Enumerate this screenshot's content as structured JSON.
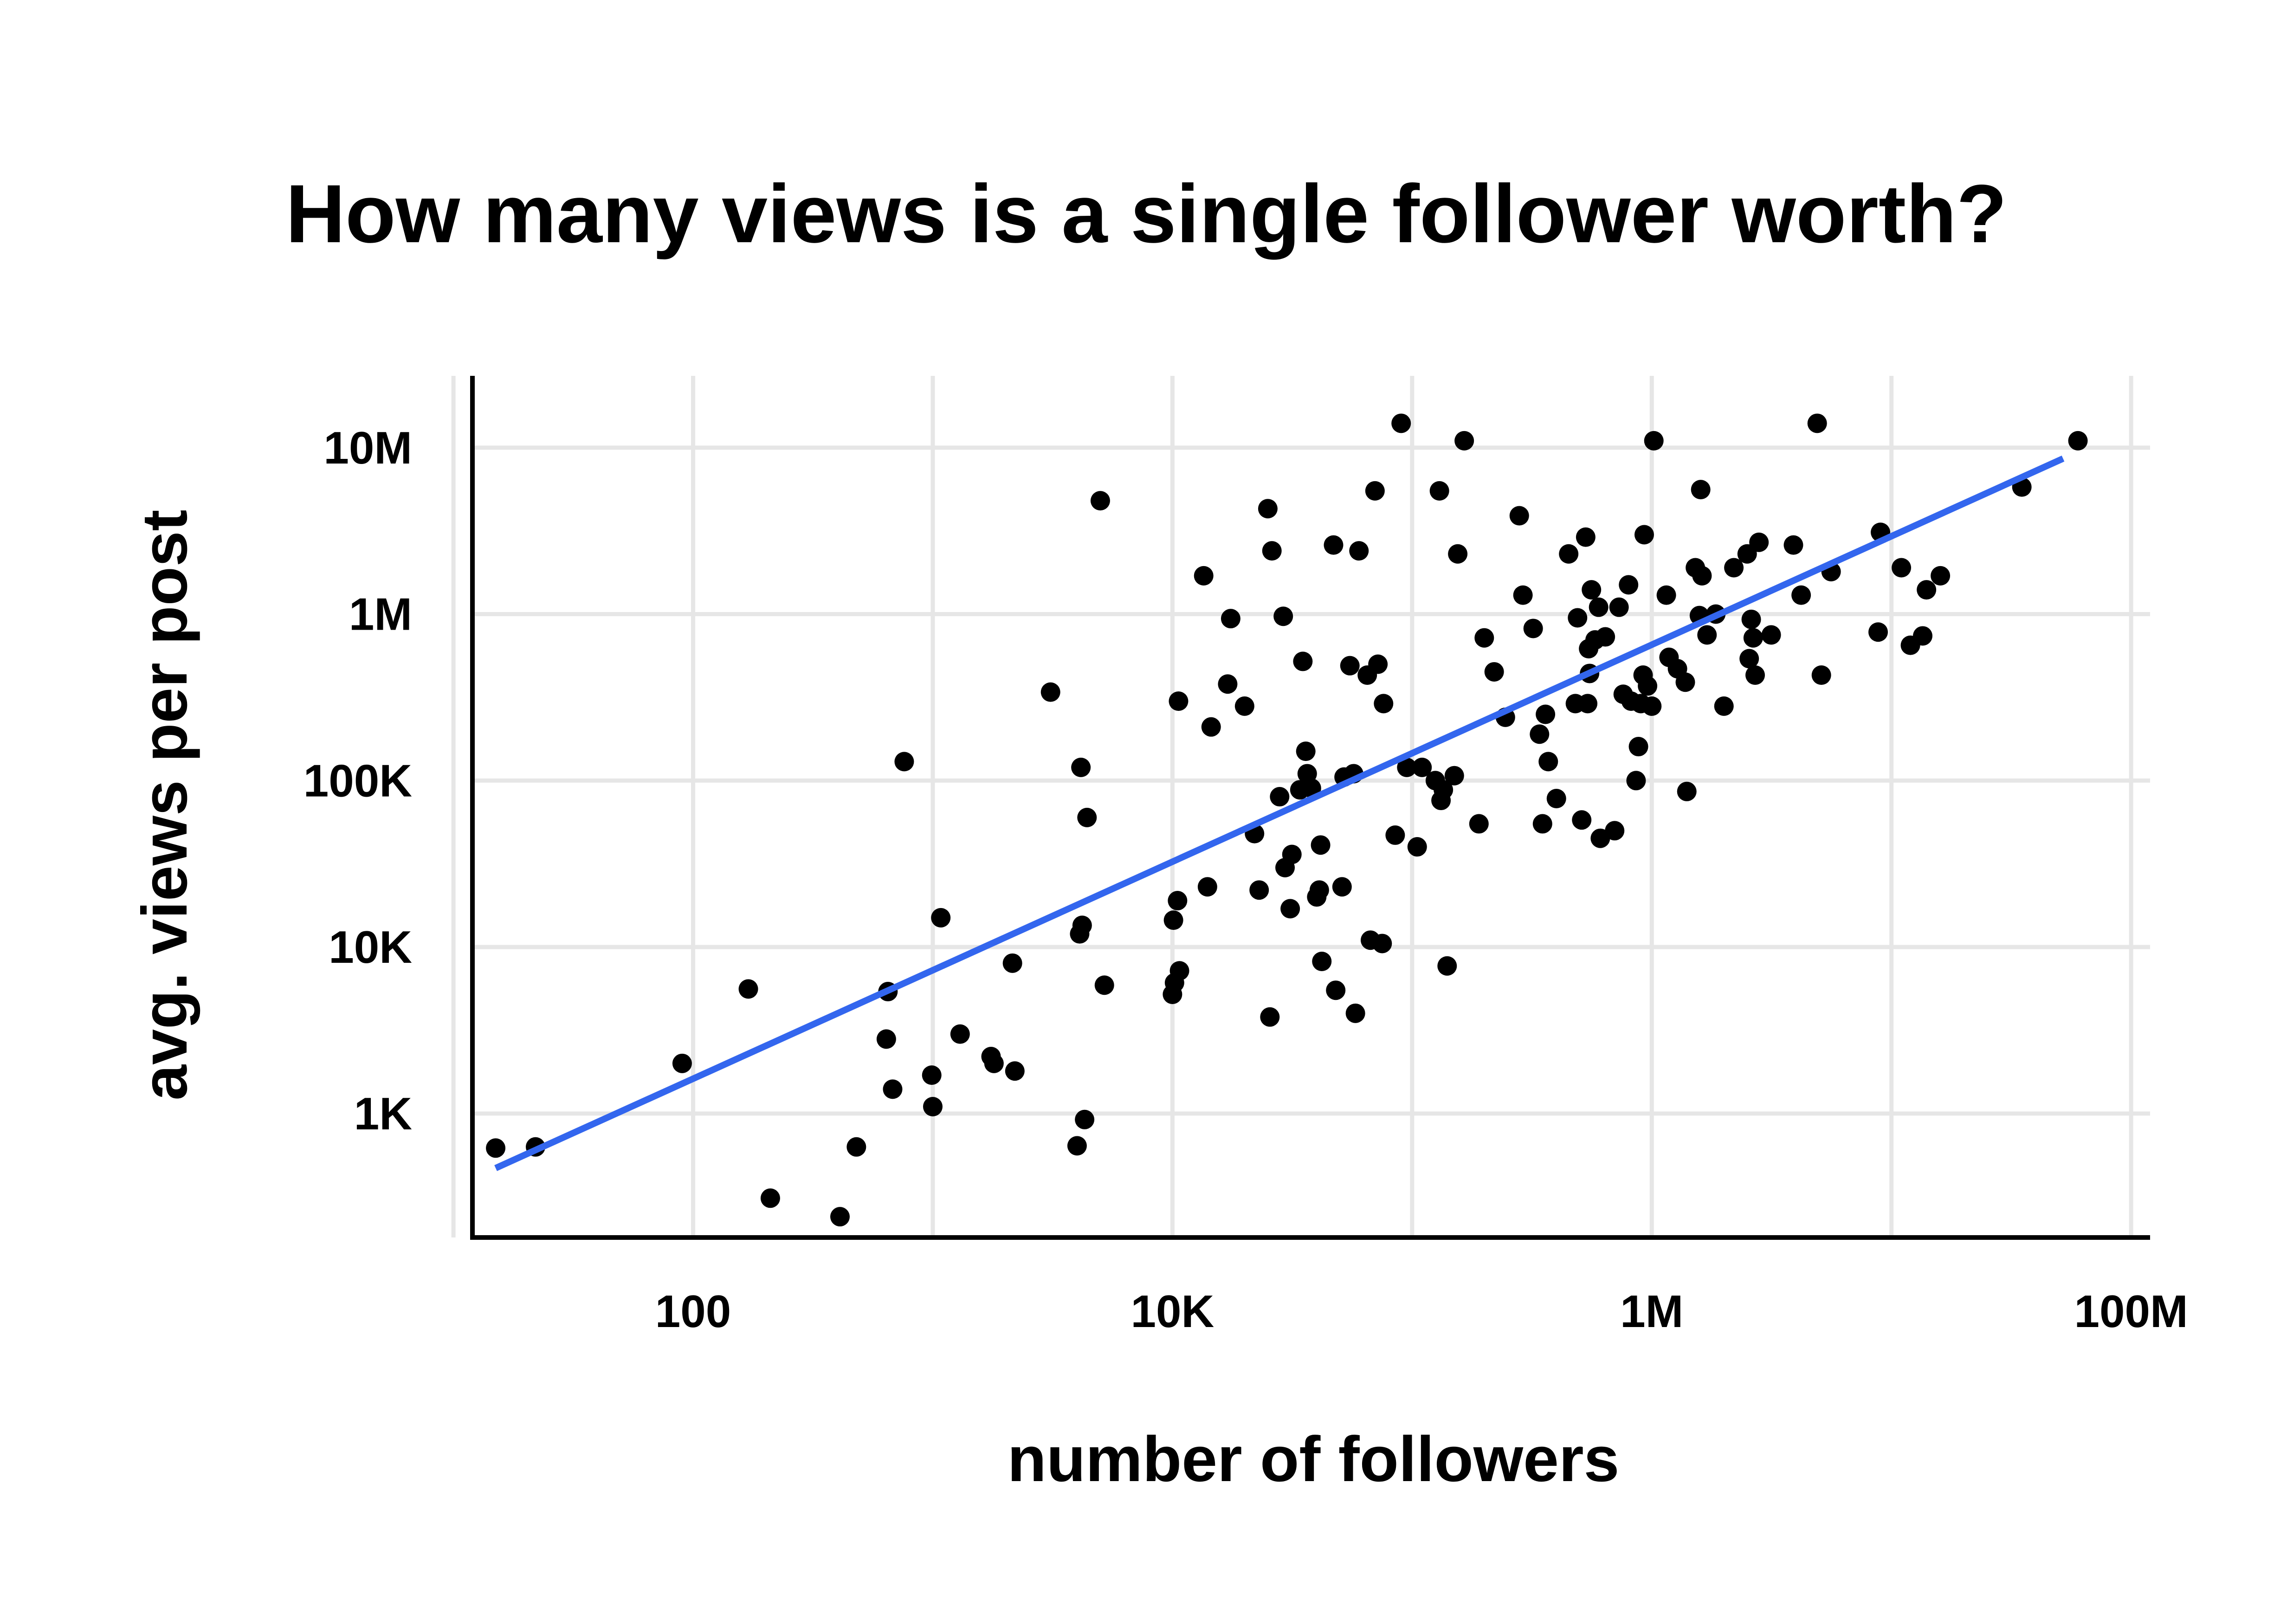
{
  "chart_data": {
    "type": "scatter",
    "title": "How many views is a single follower worth?",
    "xlabel": "number of followers",
    "ylabel": "avg. views per post",
    "x_scale": "log10",
    "y_scale": "log10",
    "xlim": [
      12,
      120000000
    ],
    "ylim": [
      180,
      27000000
    ],
    "grid": true,
    "legend": "none",
    "x_ticks": [
      {
        "value": 10,
        "label": ""
      },
      {
        "value": 100,
        "label": "100"
      },
      {
        "value": 1000,
        "label": ""
      },
      {
        "value": 10000,
        "label": "10K"
      },
      {
        "value": 100000,
        "label": ""
      },
      {
        "value": 1000000,
        "label": "1M"
      },
      {
        "value": 10000000,
        "label": ""
      },
      {
        "value": 100000000,
        "label": "100M"
      }
    ],
    "y_ticks": [
      {
        "value": 1000,
        "label": "1K"
      },
      {
        "value": 10000,
        "label": "10K"
      },
      {
        "value": 100000,
        "label": "100K"
      },
      {
        "value": 1000000,
        "label": "1M"
      },
      {
        "value": 10000000,
        "label": "10M"
      }
    ],
    "colors": {
      "points": "#000000",
      "trend": "#3366ee",
      "grid": "#e6e6e6",
      "axis": "#000000"
    },
    "trend_line": [
      {
        "x": 15,
        "y": 470
      },
      {
        "x": 52000000,
        "y": 8600000
      }
    ],
    "points": [
      {
        "x": 15,
        "y": 620
      },
      {
        "x": 22,
        "y": 630
      },
      {
        "x": 90,
        "y": 2000
      },
      {
        "x": 170,
        "y": 5600
      },
      {
        "x": 210,
        "y": 310
      },
      {
        "x": 410,
        "y": 240
      },
      {
        "x": 480,
        "y": 630
      },
      {
        "x": 640,
        "y": 2800
      },
      {
        "x": 650,
        "y": 5400
      },
      {
        "x": 680,
        "y": 1400
      },
      {
        "x": 760,
        "y": 130000
      },
      {
        "x": 990,
        "y": 1700
      },
      {
        "x": 1000,
        "y": 1100
      },
      {
        "x": 1080,
        "y": 15000
      },
      {
        "x": 1300,
        "y": 3000
      },
      {
        "x": 1750,
        "y": 2200
      },
      {
        "x": 1800,
        "y": 2000
      },
      {
        "x": 2150,
        "y": 8000
      },
      {
        "x": 2200,
        "y": 1800
      },
      {
        "x": 3100,
        "y": 340000
      },
      {
        "x": 4000,
        "y": 640
      },
      {
        "x": 4100,
        "y": 12000
      },
      {
        "x": 4150,
        "y": 120000
      },
      {
        "x": 4200,
        "y": 13500
      },
      {
        "x": 4300,
        "y": 920
      },
      {
        "x": 4400,
        "y": 60000
      },
      {
        "x": 5000,
        "y": 4800000
      },
      {
        "x": 5200,
        "y": 5900
      },
      {
        "x": 10000,
        "y": 5200
      },
      {
        "x": 10100,
        "y": 14500
      },
      {
        "x": 10200,
        "y": 6100
      },
      {
        "x": 10500,
        "y": 19000
      },
      {
        "x": 10600,
        "y": 300000
      },
      {
        "x": 10700,
        "y": 7200
      },
      {
        "x": 13500,
        "y": 1700000
      },
      {
        "x": 14000,
        "y": 23000
      },
      {
        "x": 14500,
        "y": 210000
      },
      {
        "x": 17000,
        "y": 380000
      },
      {
        "x": 17500,
        "y": 940000
      },
      {
        "x": 20000,
        "y": 280000
      },
      {
        "x": 22000,
        "y": 48000
      },
      {
        "x": 23000,
        "y": 22000
      },
      {
        "x": 25000,
        "y": 4300000
      },
      {
        "x": 25500,
        "y": 3800
      },
      {
        "x": 26000,
        "y": 2400000
      },
      {
        "x": 28000,
        "y": 80000
      },
      {
        "x": 29000,
        "y": 970000
      },
      {
        "x": 29500,
        "y": 30000
      },
      {
        "x": 31000,
        "y": 17000
      },
      {
        "x": 31500,
        "y": 36000
      },
      {
        "x": 34000,
        "y": 88000
      },
      {
        "x": 35000,
        "y": 520000
      },
      {
        "x": 36000,
        "y": 150000
      },
      {
        "x": 36500,
        "y": 110000
      },
      {
        "x": 38000,
        "y": 90000
      },
      {
        "x": 40000,
        "y": 20000
      },
      {
        "x": 41000,
        "y": 22000
      },
      {
        "x": 41500,
        "y": 41000
      },
      {
        "x": 42000,
        "y": 8200
      },
      {
        "x": 47000,
        "y": 2600000
      },
      {
        "x": 48000,
        "y": 5500
      },
      {
        "x": 51000,
        "y": 23000
      },
      {
        "x": 52000,
        "y": 105000
      },
      {
        "x": 55000,
        "y": 490000
      },
      {
        "x": 57000,
        "y": 110000
      },
      {
        "x": 58000,
        "y": 4000
      },
      {
        "x": 60000,
        "y": 2400000
      },
      {
        "x": 65000,
        "y": 430000
      },
      {
        "x": 67000,
        "y": 11000
      },
      {
        "x": 70000,
        "y": 5500000
      },
      {
        "x": 72000,
        "y": 500000
      },
      {
        "x": 75000,
        "y": 10500
      },
      {
        "x": 76000,
        "y": 290000
      },
      {
        "x": 85000,
        "y": 47000
      },
      {
        "x": 90000,
        "y": 14000000
      },
      {
        "x": 95000,
        "y": 120000
      },
      {
        "x": 105000,
        "y": 40000
      },
      {
        "x": 110000,
        "y": 120000
      },
      {
        "x": 125000,
        "y": 100000
      },
      {
        "x": 130000,
        "y": 5500000
      },
      {
        "x": 132000,
        "y": 76000
      },
      {
        "x": 135000,
        "y": 88000
      },
      {
        "x": 140000,
        "y": 7700
      },
      {
        "x": 150000,
        "y": 107000
      },
      {
        "x": 155000,
        "y": 2300000
      },
      {
        "x": 165000,
        "y": 11000000
      },
      {
        "x": 190000,
        "y": 55000
      },
      {
        "x": 200000,
        "y": 720000
      },
      {
        "x": 220000,
        "y": 450000
      },
      {
        "x": 245000,
        "y": 240000
      },
      {
        "x": 280000,
        "y": 3900000
      },
      {
        "x": 290000,
        "y": 1300000
      },
      {
        "x": 320000,
        "y": 820000
      },
      {
        "x": 340000,
        "y": 190000
      },
      {
        "x": 350000,
        "y": 55000
      },
      {
        "x": 360000,
        "y": 250000
      },
      {
        "x": 370000,
        "y": 130000
      },
      {
        "x": 400000,
        "y": 78000
      },
      {
        "x": 450000,
        "y": 2300000
      },
      {
        "x": 480000,
        "y": 290000
      },
      {
        "x": 490000,
        "y": 950000
      },
      {
        "x": 510000,
        "y": 58000
      },
      {
        "x": 530000,
        "y": 2900000
      },
      {
        "x": 540000,
        "y": 290000
      },
      {
        "x": 545000,
        "y": 620000
      },
      {
        "x": 550000,
        "y": 440000
      },
      {
        "x": 560000,
        "y": 1400000
      },
      {
        "x": 580000,
        "y": 700000
      },
      {
        "x": 600000,
        "y": 1100000
      },
      {
        "x": 610000,
        "y": 45000
      },
      {
        "x": 640000,
        "y": 730000
      },
      {
        "x": 700000,
        "y": 50000
      },
      {
        "x": 730000,
        "y": 1100000
      },
      {
        "x": 760000,
        "y": 330000
      },
      {
        "x": 800000,
        "y": 1500000
      },
      {
        "x": 820000,
        "y": 300000
      },
      {
        "x": 860000,
        "y": 100000
      },
      {
        "x": 880000,
        "y": 160000
      },
      {
        "x": 900000,
        "y": 290000
      },
      {
        "x": 920000,
        "y": 430000
      },
      {
        "x": 930000,
        "y": 3000000
      },
      {
        "x": 960000,
        "y": 370000
      },
      {
        "x": 1000000,
        "y": 280000
      },
      {
        "x": 1020000,
        "y": 11000000
      },
      {
        "x": 1150000,
        "y": 1300000
      },
      {
        "x": 1180000,
        "y": 550000
      },
      {
        "x": 1280000,
        "y": 470000
      },
      {
        "x": 1380000,
        "y": 390000
      },
      {
        "x": 1400000,
        "y": 86000
      },
      {
        "x": 1520000,
        "y": 1900000
      },
      {
        "x": 1580000,
        "y": 980000
      },
      {
        "x": 1600000,
        "y": 5600000
      },
      {
        "x": 1620000,
        "y": 1700000
      },
      {
        "x": 1700000,
        "y": 750000
      },
      {
        "x": 1850000,
        "y": 1000000
      },
      {
        "x": 2000000,
        "y": 280000
      },
      {
        "x": 2200000,
        "y": 1900000
      },
      {
        "x": 2500000,
        "y": 2300000
      },
      {
        "x": 2550000,
        "y": 540000
      },
      {
        "x": 2600000,
        "y": 930000
      },
      {
        "x": 2650000,
        "y": 720000
      },
      {
        "x": 2700000,
        "y": 430000
      },
      {
        "x": 2800000,
        "y": 2700000
      },
      {
        "x": 3150000,
        "y": 750000
      },
      {
        "x": 3900000,
        "y": 2600000
      },
      {
        "x": 4200000,
        "y": 1300000
      },
      {
        "x": 4900000,
        "y": 14000000
      },
      {
        "x": 5100000,
        "y": 430000
      },
      {
        "x": 5600000,
        "y": 1800000
      },
      {
        "x": 8800000,
        "y": 780000
      },
      {
        "x": 9000000,
        "y": 3100000
      },
      {
        "x": 11000000,
        "y": 1900000
      },
      {
        "x": 12000000,
        "y": 650000
      },
      {
        "x": 13500000,
        "y": 740000
      },
      {
        "x": 14000000,
        "y": 1400000
      },
      {
        "x": 16000000,
        "y": 1700000
      },
      {
        "x": 35000000,
        "y": 5800000
      },
      {
        "x": 60000000,
        "y": 11000000
      }
    ]
  }
}
